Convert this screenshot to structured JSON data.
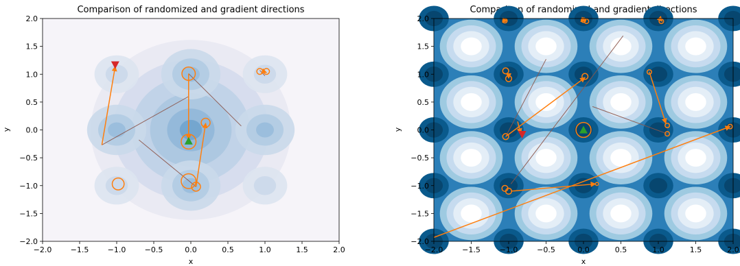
{
  "chart_data": [
    {
      "type": "contour",
      "title": "Comparison of randomized and gradient directions",
      "xlabel": "x",
      "ylabel": "y",
      "xlim": [
        -2.0,
        2.0
      ],
      "ylim": [
        -2.0,
        2.0
      ],
      "xticks": [
        "−2.0",
        "−1.5",
        "−1.0",
        "−0.5",
        "0.0",
        "0.5",
        "1.0",
        "1.5",
        "2.0"
      ],
      "yticks": [
        "−2.0",
        "−1.5",
        "−1.0",
        "−0.5",
        "0.0",
        "0.5",
        "1.0",
        "1.5",
        "2.0"
      ],
      "colormap": "PuBu",
      "background_style": "soft",
      "start_marker": {
        "x": -1.02,
        "y": 1.17,
        "color": "#d62728"
      },
      "end_marker": {
        "x": -0.03,
        "y": -0.2,
        "color": "#2ca02c"
      },
      "circles": [
        {
          "x": -0.03,
          "y": 1.01,
          "r": 0.09
        },
        {
          "x": -0.03,
          "y": -0.21,
          "r": 0.1
        },
        {
          "x": -0.03,
          "y": -0.92,
          "r": 0.1
        },
        {
          "x": 0.07,
          "y": -1.02,
          "r": 0.06
        },
        {
          "x": 0.2,
          "y": 0.13,
          "r": 0.06
        },
        {
          "x": -0.98,
          "y": -0.97,
          "r": 0.08
        },
        {
          "x": 0.93,
          "y": 1.05,
          "r": 0.04
        },
        {
          "x": 1.02,
          "y": 1.05,
          "r": 0.04
        }
      ],
      "arrows": [
        {
          "from": [
            -1.2,
            -0.27
          ],
          "to": [
            -1.02,
            1.14
          ]
        },
        {
          "from": [
            -0.03,
            1.01
          ],
          "to": [
            -0.03,
            -0.17
          ]
        },
        {
          "from": [
            0.07,
            -1.02
          ],
          "to": [
            0.2,
            0.12
          ]
        },
        {
          "from": [
            0.98,
            1.05
          ],
          "to": [
            1.02,
            1.03
          ]
        }
      ],
      "lines": [
        {
          "from": [
            -1.2,
            -0.27
          ],
          "to": [
            -0.03,
            0.6
          ]
        },
        {
          "from": [
            -0.03,
            1.01
          ],
          "to": [
            0.68,
            0.07
          ]
        },
        {
          "from": [
            -0.7,
            -0.18
          ],
          "to": [
            0.07,
            -1.02
          ]
        },
        {
          "from": [
            0.93,
            1.07
          ],
          "to": [
            1.0,
            0.97
          ]
        }
      ]
    },
    {
      "type": "contour",
      "title": "Comparison of randomized and gradient directions",
      "xlabel": "x",
      "ylabel": "y",
      "xlim": [
        -2.0,
        2.0
      ],
      "ylim": [
        -2.0,
        2.0
      ],
      "xticks": [
        "−2.0",
        "−1.5",
        "−1.0",
        "−0.5",
        "0.0",
        "0.5",
        "1.0",
        "1.5",
        "2.0"
      ],
      "yticks": [
        "−2.0",
        "−1.5",
        "−1.0",
        "−0.5",
        "0.0",
        "0.5",
        "1.0",
        "1.5",
        "2.0"
      ],
      "colormap": "PuBu",
      "background_style": "strong",
      "start_marker": {
        "x": -0.82,
        "y": -0.08,
        "color": "#d62728"
      },
      "end_marker": {
        "x": 0.0,
        "y": 0.0,
        "color": "#2ca02c"
      },
      "circles": [
        {
          "x": 0.0,
          "y": 0.0,
          "r": 0.1
        },
        {
          "x": -1.04,
          "y": -0.12,
          "r": 0.04
        },
        {
          "x": -1.04,
          "y": 1.06,
          "r": 0.04
        },
        {
          "x": -1.0,
          "y": 0.92,
          "r": 0.04
        },
        {
          "x": 0.02,
          "y": 0.96,
          "r": 0.04
        },
        {
          "x": 0.88,
          "y": 1.04,
          "r": 0.03
        },
        {
          "x": 1.12,
          "y": 0.08,
          "r": 0.03
        },
        {
          "x": 1.12,
          "y": -0.07,
          "r": 0.03
        },
        {
          "x": -1.05,
          "y": -1.05,
          "r": 0.04
        },
        {
          "x": -1.0,
          "y": -1.1,
          "r": 0.04
        },
        {
          "x": -1.05,
          "y": 1.96,
          "r": 0.03
        },
        {
          "x": 0.0,
          "y": 1.97,
          "r": 0.03
        },
        {
          "x": 0.04,
          "y": 1.95,
          "r": 0.03
        },
        {
          "x": 1.04,
          "y": 1.95,
          "r": 0.03
        },
        {
          "x": 0.18,
          "y": -0.97,
          "r": 0.02
        },
        {
          "x": 1.96,
          "y": 0.06,
          "r": 0.03
        }
      ],
      "arrows": [
        {
          "from": [
            -1.04,
            -0.12
          ],
          "to": [
            0.02,
            0.94
          ]
        },
        {
          "from": [
            -0.97,
            -1.1
          ],
          "to": [
            0.16,
            -0.97
          ]
        },
        {
          "from": [
            -2.0,
            -1.93
          ],
          "to": [
            1.96,
            0.06
          ]
        },
        {
          "from": [
            -1.0,
            1.0
          ],
          "to": [
            -1.0,
            0.93
          ]
        },
        {
          "from": [
            0.88,
            1.04
          ],
          "to": [
            1.1,
            0.12
          ]
        },
        {
          "from": [
            -0.88,
            0.15
          ],
          "to": [
            -0.84,
            -0.06
          ]
        },
        {
          "from": [
            -1.08,
            1.97
          ],
          "to": [
            -1.02,
            1.96
          ]
        },
        {
          "from": [
            -0.02,
            1.98
          ],
          "to": [
            0.03,
            1.96
          ]
        },
        {
          "from": [
            1.03,
            1.98
          ],
          "to": [
            1.05,
            1.95
          ]
        }
      ],
      "lines": [
        {
          "from": [
            -1.04,
            -0.12
          ],
          "to": [
            -0.5,
            1.27
          ]
        },
        {
          "from": [
            -0.97,
            -0.97
          ],
          "to": [
            0.53,
            1.69
          ]
        },
        {
          "from": [
            0.12,
            0.42
          ],
          "to": [
            1.12,
            -0.07
          ]
        },
        {
          "from": [
            -1.05,
            1.96
          ],
          "to": [
            -1.03,
            1.92
          ]
        }
      ]
    }
  ]
}
